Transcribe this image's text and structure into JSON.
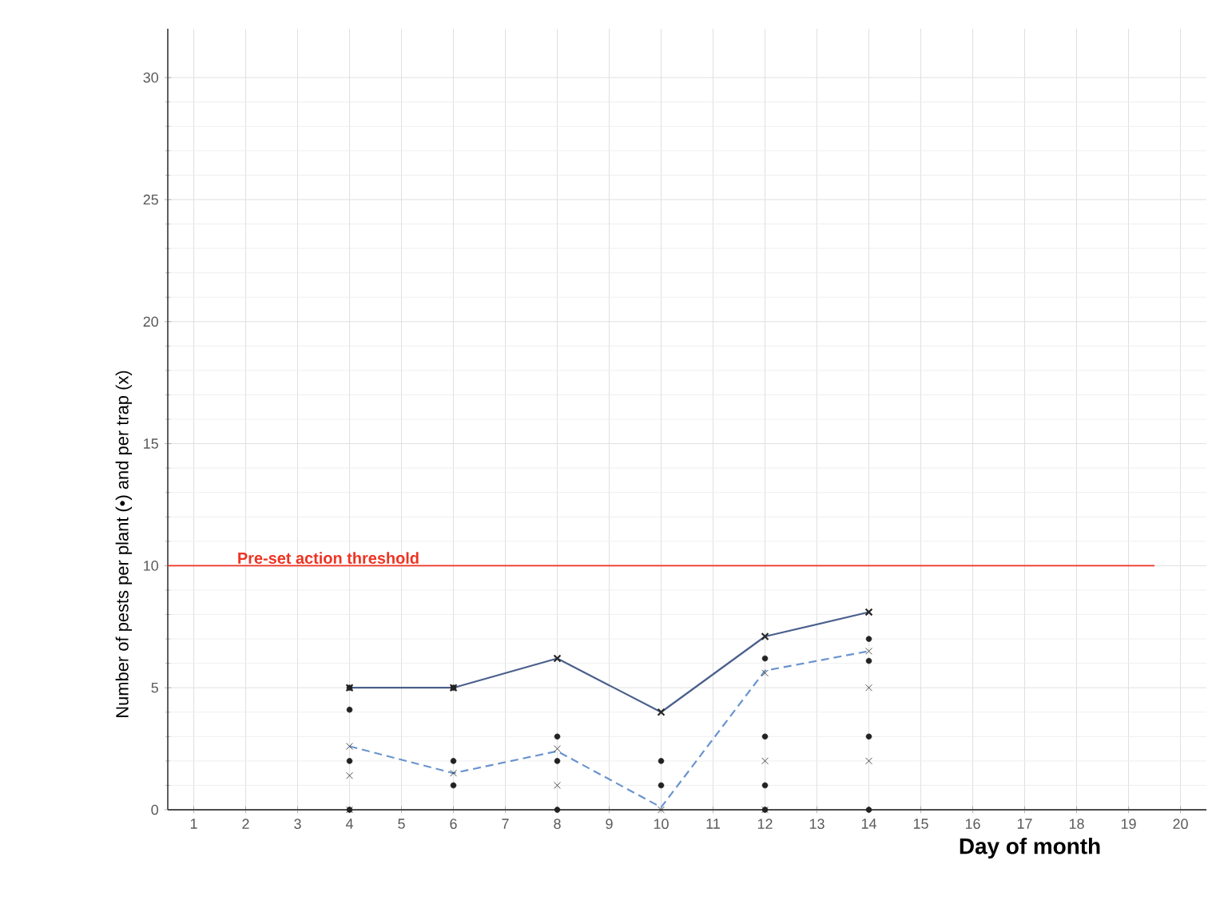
{
  "chart_data": {
    "type": "line",
    "xlabel": "Day of month",
    "ylabel": "Number of pests  per plant (•) and per trap (x)",
    "xlim": [
      0.5,
      20.5
    ],
    "xticks": [
      1,
      2,
      3,
      4,
      5,
      6,
      7,
      8,
      9,
      10,
      11,
      12,
      13,
      14,
      15,
      16,
      17,
      18,
      19,
      20
    ],
    "ylim": [
      0,
      32
    ],
    "yticks": [
      0,
      5,
      10,
      15,
      20,
      25,
      30
    ],
    "grid": true,
    "series": [
      {
        "color": "#4a5f8c",
        "line_style": "solid",
        "marker": "cross",
        "x": [
          4,
          6,
          8,
          10,
          12,
          14
        ],
        "values": [
          5,
          5,
          6.2,
          4,
          7.1,
          8.1
        ]
      },
      {
        "color": "#6a93cf",
        "line_style": "dashed",
        "marker": "none",
        "x": [
          4,
          6,
          8,
          10,
          12,
          14
        ],
        "values": [
          2.6,
          1.5,
          2.4,
          0.1,
          5.7,
          6.5
        ]
      },
      {
        "type": "scatter",
        "color": "#222222",
        "marker": "circle",
        "x": [
          4,
          4,
          4,
          4,
          6,
          6,
          6,
          8,
          8,
          8,
          10,
          10,
          12,
          12,
          12,
          12,
          14,
          14,
          14,
          14
        ],
        "values": [
          5,
          4.1,
          2,
          0,
          5,
          2,
          1,
          3,
          2,
          0,
          2,
          1,
          6.2,
          3,
          1,
          0,
          7,
          6.1,
          3,
          0
        ]
      },
      {
        "type": "scatter",
        "color": "#222222",
        "marker": "cross",
        "x": [
          4,
          4,
          4,
          6,
          8,
          8,
          10,
          12,
          12,
          12,
          14,
          14,
          14
        ],
        "values": [
          2.6,
          1.4,
          0,
          1.5,
          2.5,
          1,
          0,
          5.6,
          2,
          0,
          6.5,
          5,
          2
        ]
      }
    ],
    "ref_lines": [
      {
        "axis": "y",
        "value": 10,
        "label": "Pre-set action threshold",
        "color": "#ee3322",
        "line_style": "solid"
      }
    ]
  }
}
